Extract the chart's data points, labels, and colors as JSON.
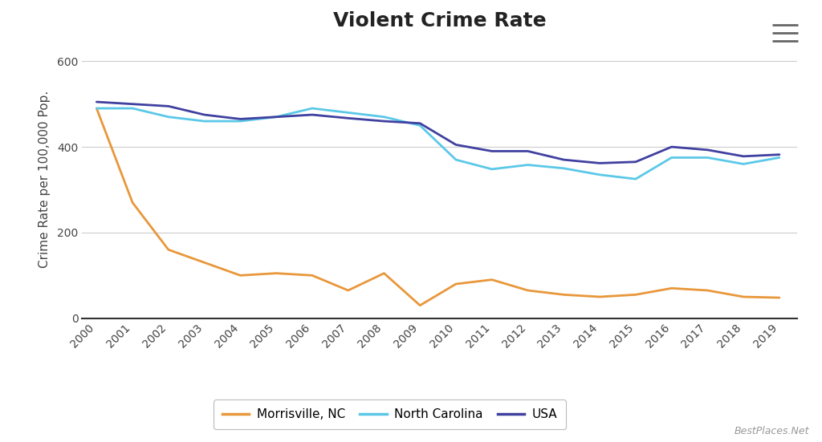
{
  "title": "Violent Crime Rate",
  "ylabel": "Crime Rate per 100,000 Pop.",
  "years": [
    2000,
    2001,
    2002,
    2003,
    2004,
    2005,
    2006,
    2007,
    2008,
    2009,
    2010,
    2011,
    2012,
    2013,
    2014,
    2015,
    2016,
    2017,
    2018,
    2019
  ],
  "morrisville": [
    490,
    270,
    160,
    130,
    100,
    105,
    100,
    65,
    105,
    30,
    80,
    90,
    65,
    55,
    50,
    55,
    70,
    65,
    50,
    48
  ],
  "nc": [
    490,
    490,
    470,
    460,
    460,
    470,
    490,
    480,
    470,
    450,
    370,
    348,
    358,
    350,
    335,
    325,
    375,
    375,
    360,
    375
  ],
  "usa": [
    505,
    500,
    495,
    475,
    465,
    470,
    475,
    467,
    460,
    455,
    405,
    390,
    390,
    370,
    362,
    365,
    400,
    393,
    378,
    382
  ],
  "morrisville_color": "#E8973A",
  "nc_color": "#5BC8E8",
  "usa_color": "#4040A0",
  "background_color": "#FFFFFF",
  "grid_color": "#CCCCCC",
  "ylim": [
    0,
    650
  ],
  "yticks": [
    0,
    200,
    400,
    600
  ],
  "title_fontsize": 18,
  "label_fontsize": 11,
  "tick_fontsize": 10,
  "legend_fontsize": 11,
  "watermark": "BestPlaces.Net",
  "line_width": 2.0
}
